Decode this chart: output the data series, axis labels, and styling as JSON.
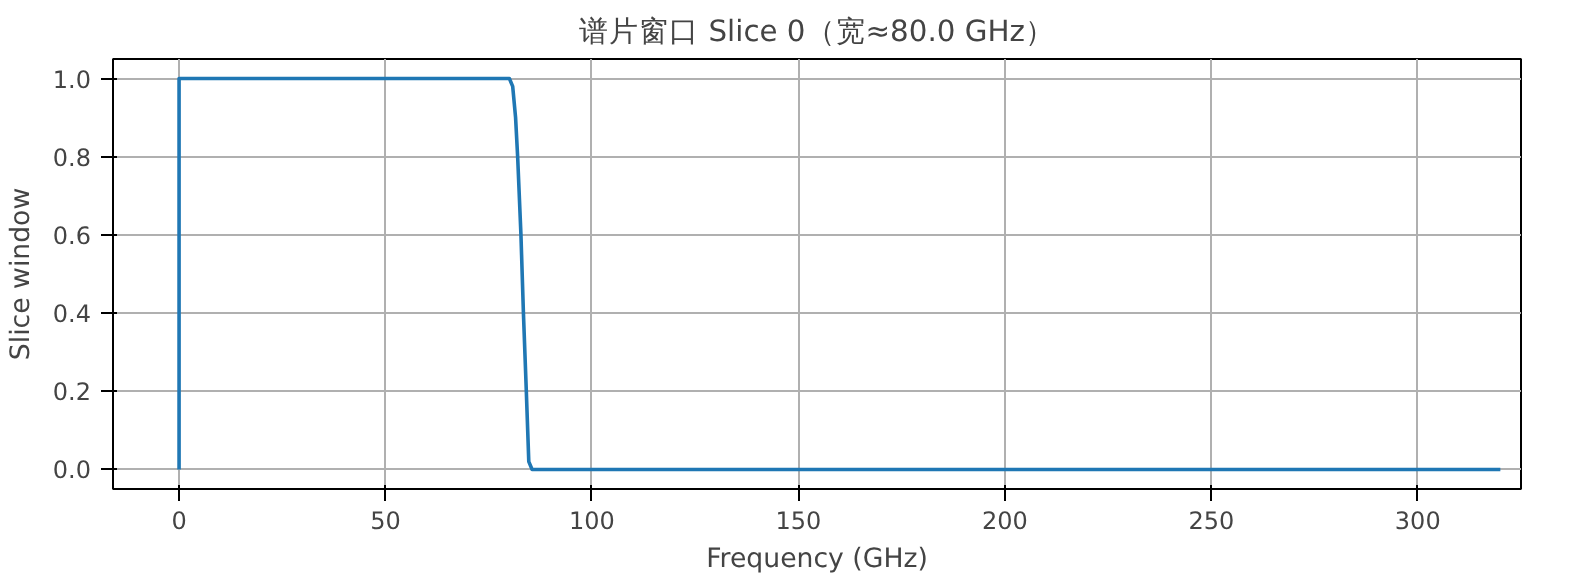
{
  "chart_data": {
    "type": "line",
    "title": "谱片窗口 Slice 0（宽≈80.0 GHz）",
    "xlabel": "Frequency (GHz)",
    "ylabel": "Slice window",
    "x": [
      0,
      0,
      80,
      80.8,
      81.5,
      82,
      82.8,
      83.4,
      84.1,
      84.7,
      85.5,
      320
    ],
    "series": [
      {
        "color": "#1f77b4",
        "values": [
          0,
          1,
          1,
          0.98,
          0.9,
          0.8,
          0.6,
          0.4,
          0.2,
          0.02,
          0,
          0
        ]
      }
    ],
    "xlim": [
      -16,
      325
    ],
    "ylim": [
      -0.05,
      1.05
    ],
    "xticks": [
      0,
      50,
      100,
      150,
      200,
      250,
      300
    ],
    "yticks": [
      {
        "value": 0,
        "label": "0.0"
      },
      {
        "value": 0.2,
        "label": "0.2"
      },
      {
        "value": 0.4,
        "label": "0.4"
      },
      {
        "value": 0.6,
        "label": "0.6"
      },
      {
        "value": 0.8,
        "label": "0.8"
      },
      {
        "value": 1,
        "label": "1.0"
      }
    ],
    "grid": true,
    "marker": "none",
    "line_style": "solid"
  }
}
